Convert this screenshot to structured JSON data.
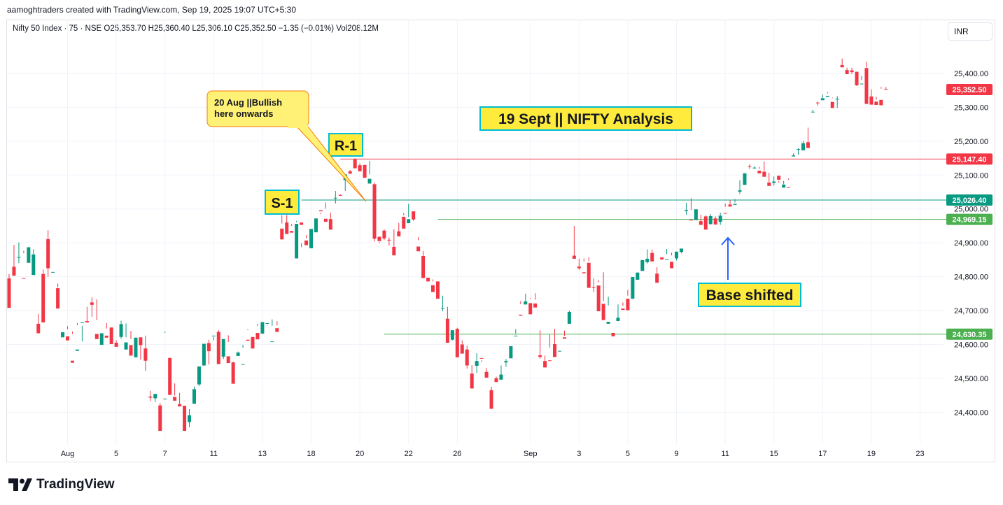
{
  "header": {
    "created_by": "aamoghtraders created with TradingView.com, Sep 19, 2025 19:07 UTC+5:30"
  },
  "legend": {
    "symbol_line": "Nifty 50 Index · 75 · NSE  O25,353.70  H25,360.40  L25,306.10  C25,352.50  −1.35 (−0.01%)  Vol208.12M"
  },
  "currency_button": {
    "label": "INR"
  },
  "branding": {
    "logo_text": "TradingView",
    "logo_icon": "tradingview-logo-icon"
  },
  "colors": {
    "up": "#089981",
    "down": "#f23645",
    "resistance_line": "#f23645",
    "support_line": "#089981",
    "base_line": "#4caf50",
    "annotation_fill": "#ffeb3b",
    "annotation_border": "#00bcd4",
    "callout_fill": "#fff176",
    "callout_border": "#f57c00",
    "arrow": "#2962ff",
    "last_price": "#f23645"
  },
  "annotations": {
    "title": "19 Sept || NIFTY Analysis",
    "r1": "R-1",
    "s1": "S-1",
    "base_shifted": "Base shifted",
    "callout_line1": "20 Aug ||Bullish",
    "callout_line2": "here onwards"
  },
  "chart_data": {
    "type": "candlestick",
    "ylim": [
      24300,
      25480
    ],
    "y_ticks": [
      24400,
      24500,
      24600,
      24700,
      24800,
      24900,
      25000,
      25100,
      25200,
      25300,
      25400
    ],
    "y_tick_labels": [
      "24,400.00",
      "24,500.00",
      "24,600.00",
      "24,700.00",
      "24,800.00",
      "24,900.00",
      "25,000.00",
      "25,100.00",
      "25,200.00",
      "25,300.00",
      "25,400.00"
    ],
    "x_labels": [
      {
        "label": "Aug",
        "index": 12
      },
      {
        "label": "5",
        "index": 22
      },
      {
        "label": "7",
        "index": 32
      },
      {
        "label": "11",
        "index": 42
      },
      {
        "label": "13",
        "index": 52
      },
      {
        "label": "18",
        "index": 62
      },
      {
        "label": "20",
        "index": 72
      },
      {
        "label": "22",
        "index": 82
      },
      {
        "label": "26",
        "index": 92
      },
      {
        "label": "Sep",
        "index": 107
      },
      {
        "label": "3",
        "index": 117
      },
      {
        "label": "5",
        "index": 127
      },
      {
        "label": "9",
        "index": 137
      },
      {
        "label": "11",
        "index": 147
      },
      {
        "label": "15",
        "index": 157
      },
      {
        "label": "17",
        "index": 167
      },
      {
        "label": "19",
        "index": 177
      },
      {
        "label": "23",
        "index": 187
      }
    ],
    "levels": [
      {
        "name": "R-1",
        "value": 25147.4,
        "label": "25,147.40",
        "color": "#f23645",
        "start_index": 68
      },
      {
        "name": "S-1",
        "value": 25026.4,
        "label": "25,026.40",
        "color": "#089981",
        "start_index": 60
      },
      {
        "name": "base",
        "value": 24969.15,
        "label": "24,969.15",
        "color": "#4caf50",
        "start_index": 88
      },
      {
        "name": "support",
        "value": 24630.35,
        "label": "24,630.35",
        "color": "#4caf50",
        "start_index": 77
      }
    ],
    "last_price": {
      "value": 25352.5,
      "label": "25,352.50"
    },
    "candles": [
      [
        24795,
        24808,
        24718,
        24708
      ],
      [
        24829,
        24894,
        24813,
        24803
      ],
      [
        24856,
        24901,
        24840,
        24858
      ],
      [
        24796,
        24877,
        24869,
        24795
      ],
      [
        24841,
        24878,
        24878,
        24887
      ],
      [
        24805,
        24881,
        24867,
        24866
      ],
      [
        24661,
        24690,
        24642,
        24633
      ],
      [
        24808,
        24669,
        24821,
        24665
      ],
      [
        24911,
        24800,
        24937,
        24825
      ],
      [
        24814,
        24920,
        24921,
        24814
      ],
      [
        24766,
        24780,
        24768,
        24706
      ],
      [
        24621,
        24708,
        24708,
        24636
      ],
      [
        24624,
        24645,
        24654,
        24612
      ],
      [
        24552,
        24638,
        24631,
        24546
      ],
      [
        24581,
        24663,
        24657,
        24585
      ],
      [
        24665,
        24655,
        24609,
        24665
      ],
      [
        24669,
        24711,
        24667,
        24665
      ],
      [
        24724,
        24682,
        24739,
        24717
      ],
      [
        24631,
        24733,
        24672,
        24616
      ],
      [
        24599,
        24616,
        24633,
        24633
      ],
      [
        24626,
        24663,
        24647,
        24620
      ],
      [
        24650,
        24646,
        24624,
        24601
      ],
      [
        24605,
        24612,
        24605,
        24593
      ],
      [
        24622,
        24617,
        24670,
        24660
      ],
      [
        24585,
        24662,
        24621,
        24606
      ],
      [
        24598,
        24640,
        24616,
        24567
      ],
      [
        24562,
        24591,
        24616,
        24620
      ],
      [
        24621,
        24612,
        24555,
        24598
      ],
      [
        24588,
        24626,
        24522,
        24552
      ],
      [
        24446,
        24433,
        24463,
        24443
      ],
      [
        24441,
        24444,
        24430,
        24454
      ],
      [
        24420,
        24427,
        24420,
        24345
      ],
      [
        24438,
        24634,
        24638,
        24440
      ],
      [
        24560,
        24547,
        24561,
        24451
      ],
      [
        24445,
        24485,
        24449,
        24434
      ],
      [
        24424,
        24457,
        24424,
        24417
      ],
      [
        24419,
        24433,
        24434,
        24345
      ],
      [
        24371,
        24409,
        24356,
        24391
      ],
      [
        24425,
        24476,
        24425,
        24468
      ],
      [
        24482,
        24482,
        24477,
        24535
      ],
      [
        24538,
        24537,
        24541,
        24602
      ],
      [
        24604,
        24614,
        24541,
        24580
      ],
      [
        24624,
        24621,
        24612,
        24626
      ],
      [
        24637,
        24642,
        24609,
        24542
      ],
      [
        24564,
        24602,
        24557,
        24616
      ],
      [
        24565,
        24627,
        24607,
        24545
      ],
      [
        24547,
        24549,
        24494,
        24484
      ],
      [
        24566,
        24574,
        24579,
        24576
      ],
      [
        24542,
        24599,
        24590,
        24542
      ],
      [
        24614,
        24642,
        24645,
        24611
      ],
      [
        24622,
        24620,
        24603,
        24588
      ],
      [
        24634,
        24655,
        24661,
        24615
      ],
      [
        24632,
        24651,
        24655,
        24666
      ],
      [
        24663,
        24658,
        24656,
        24663
      ],
      [
        24609,
        24674,
        24655,
        24609
      ],
      [
        24648,
        24669,
        24656,
        24637
      ],
      [
        24942,
        24981,
        24957,
        24910
      ],
      [
        24960,
        24982,
        24951,
        24926
      ],
      [
        24935,
        24956,
        24950,
        24930
      ],
      [
        24854,
        24965,
        24961,
        24956
      ],
      [
        24960,
        24887,
        24899,
        24953
      ],
      [
        24907,
        24914,
        24923,
        24893
      ],
      [
        24884,
        24937,
        24917,
        24941
      ],
      [
        24931,
        24966,
        24947,
        24972
      ],
      [
        24996,
        24988,
        24984,
        24993
      ],
      [
        24971,
        25019,
        25001,
        24962
      ],
      [
        24970,
        24989,
        24953,
        24939
      ],
      [
        25033,
        25016,
        25053,
        25033
      ],
      [
        25041,
        25044,
        25041,
        25040
      ],
      [
        25085,
        25053,
        25097,
        25102
      ],
      [
        25111,
        25107,
        25115,
        25104
      ],
      [
        25146,
        25149,
        25150,
        25120
      ],
      [
        25129,
        25135,
        25123,
        25111
      ],
      [
        25130,
        25117,
        25120,
        25092
      ],
      [
        25075,
        25142,
        25102,
        25089
      ],
      [
        25073,
        25078,
        24904,
        24912
      ],
      [
        24918,
        24902,
        24899,
        24905
      ],
      [
        24936,
        24940,
        24908,
        24913
      ],
      [
        24909,
        24916,
        24892,
        24908
      ],
      [
        24888,
        24940,
        24868,
        24863
      ],
      [
        24934,
        24959,
        24931,
        24919
      ],
      [
        24977,
        24988,
        24981,
        24942
      ],
      [
        24958,
        25015,
        24976,
        24970
      ],
      [
        24993,
        24982,
        24965,
        24969
      ],
      [
        24889,
        24917,
        24908,
        24875
      ],
      [
        24861,
        24876,
        24814,
        24796
      ],
      [
        24797,
        24794,
        24789,
        24786
      ],
      [
        24775,
        24792,
        24786,
        24755
      ],
      [
        24786,
        24778,
        24762,
        24735
      ],
      [
        24708,
        24744,
        24698,
        24708
      ],
      [
        24676,
        24711,
        24621,
        24605
      ],
      [
        24614,
        24641,
        24612,
        24642
      ],
      [
        24646,
        24649,
        24591,
        24562
      ],
      [
        24600,
        24612,
        24591,
        24573
      ],
      [
        24585,
        24597,
        24529,
        24538
      ],
      [
        24514,
        24539,
        24514,
        24470
      ],
      [
        24537,
        24574,
        24516,
        24551
      ],
      [
        24560,
        24548,
        24553,
        24558
      ],
      [
        24519,
        24530,
        24507,
        24502
      ],
      [
        24465,
        24475,
        24462,
        24410
      ],
      [
        24500,
        24505,
        24495,
        24489
      ],
      [
        24496,
        24538,
        24510,
        24511
      ],
      [
        24547,
        24557,
        24534,
        24551
      ],
      [
        24559,
        24567,
        24585,
        24595
      ],
      [
        24625,
        24645,
        24632,
        24626
      ],
      [
        24688,
        24728,
        24719,
        24685
      ],
      [
        24718,
        24750,
        24724,
        24727
      ],
      [
        24722,
        24737,
        24734,
        24689
      ],
      [
        24721,
        24751,
        24732,
        24709
      ],
      [
        24568,
        24642,
        24558,
        24563
      ],
      [
        24551,
        24567,
        24543,
        24532
      ],
      [
        24553,
        24629,
        24591,
        24552
      ],
      [
        24601,
        24646,
        24596,
        24563
      ],
      [
        24580,
        24595,
        24595,
        24581
      ],
      [
        24621,
        24641,
        24625,
        24617
      ],
      [
        24661,
        24700,
        24673,
        24696
      ],
      [
        24862,
        24950,
        24861,
        24853
      ],
      [
        24830,
        24853,
        24820,
        24825
      ],
      [
        24813,
        24854,
        24845,
        24810
      ],
      [
        24841,
        24857,
        24846,
        24767
      ],
      [
        24769,
        24795,
        24754,
        24767
      ],
      [
        24774,
        24790,
        24784,
        24698
      ],
      [
        24720,
        24813,
        24728,
        24672
      ],
      [
        24661,
        24741,
        24715,
        24667
      ],
      [
        24634,
        24659,
        24659,
        24624
      ],
      [
        24669,
        24672,
        24718,
        24679
      ],
      [
        24706,
        24724,
        24714,
        24702
      ],
      [
        24735,
        24761,
        24744,
        24701
      ],
      [
        24735,
        24769,
        24791,
        24799
      ],
      [
        24791,
        24803,
        24813,
        24812
      ],
      [
        24817,
        24836,
        24832,
        24849
      ],
      [
        24843,
        24839,
        24881,
        24853
      ],
      [
        24870,
        24880,
        24861,
        24845
      ],
      [
        24809,
        24828,
        24798,
        24782
      ],
      [
        24857,
        24853,
        24850,
        24851
      ],
      [
        24850,
        24882,
        24867,
        24852
      ],
      [
        24844,
        24871,
        24863,
        24825
      ],
      [
        24854,
        24848,
        24870,
        24874
      ],
      [
        24873,
        24881,
        24869,
        24883
      ],
      [
        24994,
        24983,
        25018,
        24997
      ],
      [
        24968,
        25032,
        24997,
        24967
      ],
      [
        24967,
        24992,
        24994,
        24999
      ],
      [
        24964,
        24963,
        24983,
        24953
      ],
      [
        24978,
        24968,
        24981,
        24939
      ],
      [
        24955,
        24985,
        24966,
        24979
      ],
      [
        24972,
        24978,
        24954,
        24954
      ],
      [
        24962,
        24953,
        24989,
        24980
      ],
      [
        24988,
        25016,
        25006,
        24986
      ],
      [
        25013,
        25013,
        25027,
        25007
      ],
      [
        25012,
        25029,
        25019,
        25015
      ],
      [
        25051,
        25085,
        25044,
        25055
      ],
      [
        25071,
        25101,
        25106,
        25105
      ],
      [
        25126,
        25132,
        25118,
        25124
      ],
      [
        25122,
        25118,
        25126,
        25122
      ],
      [
        25113,
        25124,
        25118,
        25105
      ],
      [
        25110,
        25140,
        25112,
        25095
      ],
      [
        25078,
        25107,
        25079,
        25068
      ],
      [
        25077,
        25096,
        25069,
        25081
      ],
      [
        25098,
        25078,
        25083,
        25086
      ],
      [
        25063,
        25083,
        25073,
        25072
      ],
      [
        25064,
        25090,
        25086,
        25062
      ],
      [
        25155,
        25164,
        25158,
        25158
      ],
      [
        25176,
        25160,
        25179,
        25177
      ],
      [
        25173,
        25186,
        25201,
        25194
      ],
      [
        25197,
        25240,
        25195,
        25180
      ],
      [
        25286,
        25293,
        25287,
        25287
      ],
      [
        25314,
        25317,
        25305,
        25313
      ],
      [
        25321,
        25328,
        25337,
        25327
      ],
      [
        25331,
        25345,
        25341,
        25334
      ],
      [
        25316,
        25329,
        25327,
        25298
      ],
      [
        25325,
        25333,
        25298,
        25325
      ],
      [
        25425,
        25444,
        25420,
        25418
      ],
      [
        25410,
        25417,
        25404,
        25398
      ],
      [
        25409,
        25398,
        25417,
        25404
      ],
      [
        25405,
        25382,
        25363,
        25365
      ],
      [
        25368,
        25392,
        25381,
        25370
      ],
      [
        25416,
        25435,
        25417,
        25310
      ],
      [
        25332,
        25353,
        25321,
        25308
      ],
      [
        25317,
        25331,
        25322,
        25307
      ],
      [
        25322,
        25360,
        25355,
        25306
      ],
      [
        25354,
        25360,
        25353,
        25353
      ]
    ]
  }
}
